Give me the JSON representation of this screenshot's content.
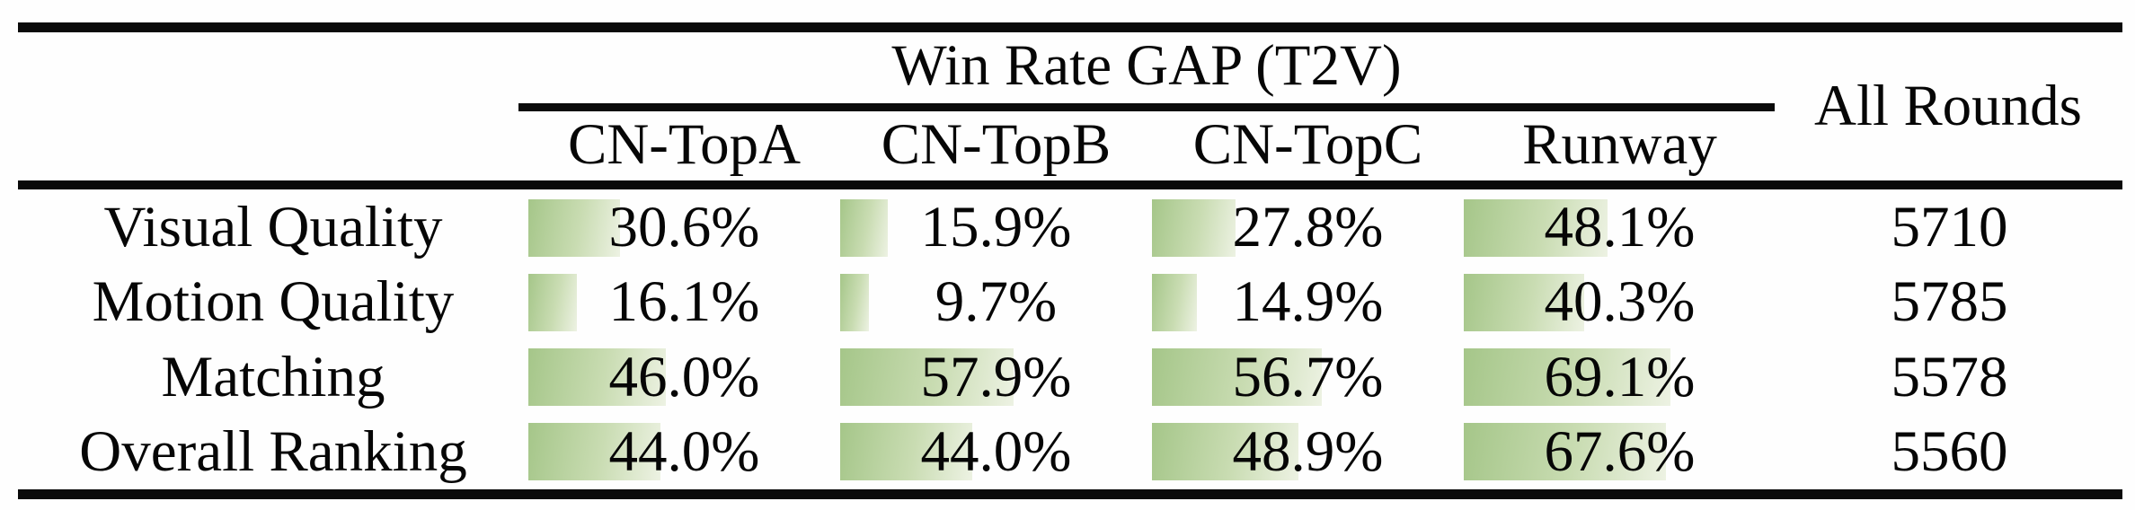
{
  "table": {
    "group_header": "Win Rate GAP (T2V)",
    "all_rounds_header": "All Rounds",
    "columns": [
      "CN-TopA",
      "CN-TopB",
      "CN-TopC",
      "Runway"
    ],
    "rows": [
      {
        "label": "Visual Quality",
        "values": [
          "30.6%",
          "15.9%",
          "27.8%",
          "48.1%"
        ],
        "all_rounds": "5710"
      },
      {
        "label": "Motion Quality",
        "values": [
          "16.1%",
          "9.7%",
          "14.9%",
          "40.3%"
        ],
        "all_rounds": "5785"
      },
      {
        "label": "Matching",
        "values": [
          "46.0%",
          "57.9%",
          "56.7%",
          "69.1%"
        ],
        "all_rounds": "5578"
      },
      {
        "label": "Overall Ranking",
        "values": [
          "44.0%",
          "44.0%",
          "48.9%",
          "67.6%"
        ],
        "all_rounds": "5560"
      }
    ]
  },
  "colors": {
    "bar_gradient_start": "#a5c689",
    "bar_gradient_mid": "#c9dcb2",
    "bar_gradient_end": "#edf2e3",
    "rule_color": "#0a0a0a",
    "text_color": "#060606",
    "background": "#fefefe"
  },
  "chart_data": {
    "type": "table",
    "title": "Win Rate GAP (T2V)",
    "categories": [
      "Visual Quality",
      "Motion Quality",
      "Matching",
      "Overall Ranking"
    ],
    "series": [
      {
        "name": "CN-TopA",
        "values": [
          30.6,
          16.1,
          46.0,
          44.0
        ]
      },
      {
        "name": "CN-TopB",
        "values": [
          15.9,
          9.7,
          57.9,
          44.0
        ]
      },
      {
        "name": "CN-TopC",
        "values": [
          27.8,
          14.9,
          56.7,
          48.9
        ]
      },
      {
        "name": "Runway",
        "values": [
          48.1,
          40.3,
          69.1,
          67.6
        ]
      }
    ],
    "extra_column": {
      "name": "All Rounds",
      "values": [
        5710,
        5785,
        5578,
        5560
      ]
    },
    "unit": "%",
    "bar_scale_max_percent": 100
  }
}
